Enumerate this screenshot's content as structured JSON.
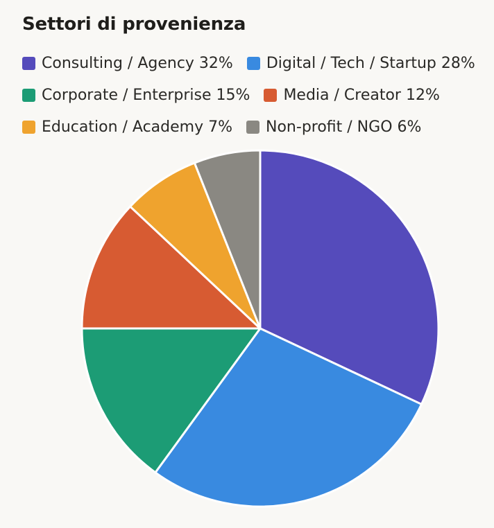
{
  "chart_data": {
    "type": "pie",
    "title": "Settori di provenienza",
    "slices": [
      {
        "label": "Consulting / Agency",
        "value": 32,
        "percent_label": "32%",
        "color": "#554bbb"
      },
      {
        "label": "Digital / Tech / Startup",
        "value": 28,
        "percent_label": "28%",
        "color": "#398ae0"
      },
      {
        "label": "Corporate / Enterprise",
        "value": 15,
        "percent_label": "15%",
        "color": "#1c9c75"
      },
      {
        "label": "Media / Creator",
        "value": 12,
        "percent_label": "12%",
        "color": "#d75b32"
      },
      {
        "label": "Education / Academy",
        "value": 7,
        "percent_label": "7%",
        "color": "#efa32e"
      },
      {
        "label": "Non-profit / NGO",
        "value": 6,
        "percent_label": "6%",
        "color": "#8a8882"
      }
    ],
    "legend_position": "top",
    "start_angle": "12 o'clock",
    "direction": "clockwise"
  }
}
